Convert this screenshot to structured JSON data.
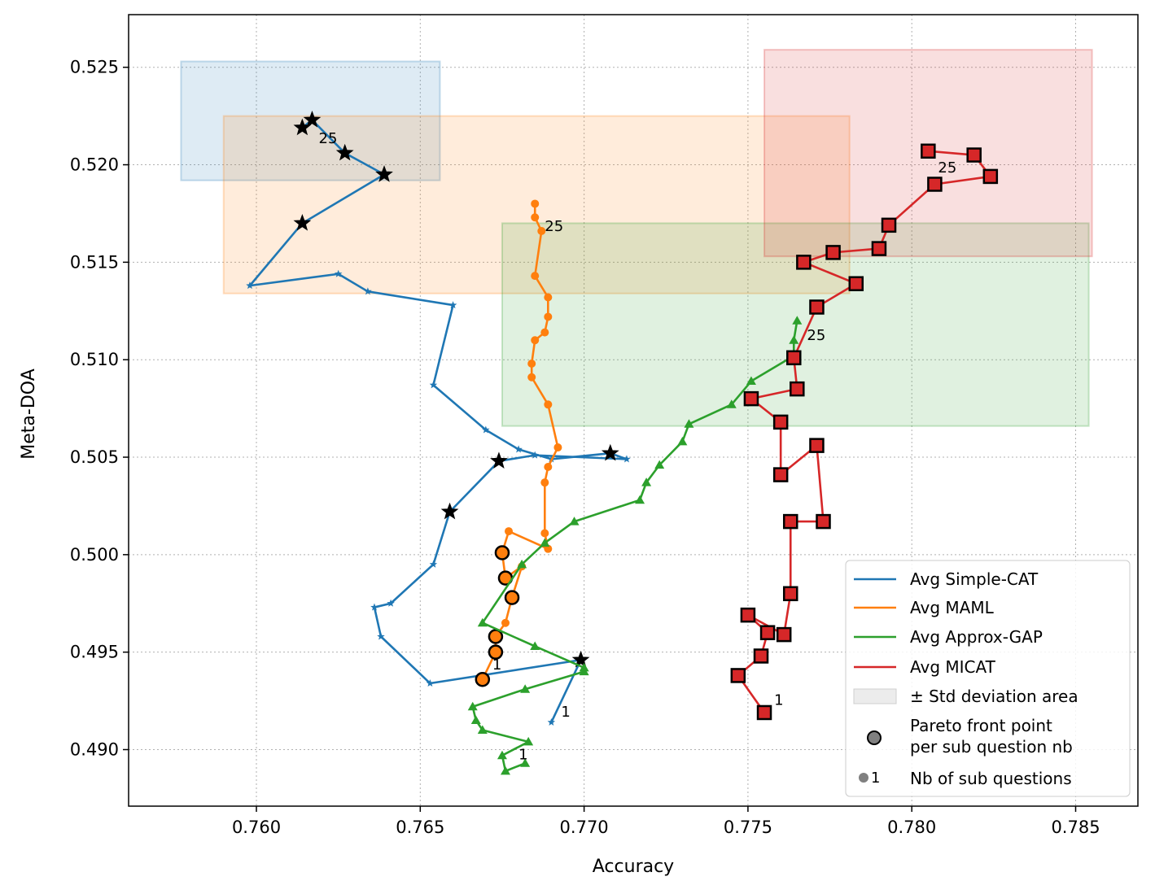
{
  "chart_data": {
    "type": "line",
    "xlabel": "Accuracy",
    "ylabel": "Meta-DOA",
    "xlim": [
      0.7561,
      0.7869
    ],
    "ylim": [
      0.4871,
      0.5277
    ],
    "xticks": [
      0.76,
      0.765,
      0.77,
      0.775,
      0.78,
      0.785
    ],
    "xtick_labels": [
      "0.760",
      "0.765",
      "0.770",
      "0.775",
      "0.780",
      "0.785"
    ],
    "yticks": [
      0.49,
      0.495,
      0.5,
      0.505,
      0.51,
      0.515,
      0.52,
      0.525
    ],
    "ytick_labels": [
      "0.490",
      "0.495",
      "0.500",
      "0.505",
      "0.510",
      "0.515",
      "0.520",
      "0.525"
    ],
    "grid": true,
    "legend_position": "lower-right",
    "legend_extra": {
      "std_label": "± Std deviation area",
      "pareto_label_line1": "Pareto front point",
      "pareto_label_line2": "per sub question nb",
      "nb_label": "Nb of sub questions",
      "nb_marker_text": "1"
    },
    "series": [
      {
        "name": "Avg Simple-CAT",
        "color": "#1f77b4",
        "marker": "star",
        "std_area": {
          "x": [
            0.7577,
            0.7656
          ],
          "y": [
            0.5192,
            0.5253
          ]
        },
        "points": [
          [
            0.769,
            0.4914
          ],
          [
            0.7699,
            0.4946
          ],
          [
            0.7653,
            0.4934
          ],
          [
            0.7638,
            0.4958
          ],
          [
            0.7636,
            0.4973
          ],
          [
            0.7641,
            0.4975
          ],
          [
            0.7654,
            0.4995
          ],
          [
            0.7659,
            0.5022
          ],
          [
            0.7674,
            0.5048
          ],
          [
            0.7685,
            0.5051
          ],
          [
            0.7713,
            0.5049
          ],
          [
            0.7708,
            0.5052
          ],
          [
            0.769,
            0.5049
          ],
          [
            0.768,
            0.5054
          ],
          [
            0.767,
            0.5064
          ],
          [
            0.7654,
            0.5087
          ],
          [
            0.766,
            0.5128
          ],
          [
            0.7634,
            0.5135
          ],
          [
            0.7625,
            0.5144
          ],
          [
            0.7598,
            0.5138
          ],
          [
            0.7614,
            0.517
          ],
          [
            0.7639,
            0.5195
          ],
          [
            0.7627,
            0.5206
          ],
          [
            0.7617,
            0.5223
          ],
          [
            0.7614,
            0.5219
          ]
        ],
        "pareto": [
          [
            0.7699,
            0.4946
          ],
          [
            0.7659,
            0.5022
          ],
          [
            0.7674,
            0.5048
          ],
          [
            0.7708,
            0.5052
          ],
          [
            0.7614,
            0.517
          ],
          [
            0.7639,
            0.5195
          ],
          [
            0.7627,
            0.5206
          ],
          [
            0.7617,
            0.5223
          ],
          [
            0.7614,
            0.5219
          ]
        ],
        "label_first": "1",
        "label_last": "25",
        "label_first_at": [
          0.7693,
          0.4917
        ],
        "label_last_at": [
          0.7619,
          0.5211
        ]
      },
      {
        "name": "Avg MAML",
        "color": "#ff7f0e",
        "marker": "circle",
        "std_area": {
          "x": [
            0.759,
            0.7781
          ],
          "y": [
            0.5134,
            0.5225
          ]
        },
        "points": [
          [
            0.7669,
            0.4936
          ],
          [
            0.7673,
            0.495
          ],
          [
            0.7673,
            0.4958
          ],
          [
            0.7676,
            0.4965
          ],
          [
            0.7678,
            0.4978
          ],
          [
            0.7681,
            0.4994
          ],
          [
            0.7676,
            0.4988
          ],
          [
            0.7675,
            0.5001
          ],
          [
            0.7677,
            0.5012
          ],
          [
            0.7689,
            0.5003
          ],
          [
            0.7688,
            0.5011
          ],
          [
            0.7688,
            0.5037
          ],
          [
            0.7689,
            0.5045
          ],
          [
            0.7692,
            0.5055
          ],
          [
            0.7689,
            0.5077
          ],
          [
            0.7684,
            0.5091
          ],
          [
            0.7684,
            0.5098
          ],
          [
            0.7685,
            0.511
          ],
          [
            0.7688,
            0.5114
          ],
          [
            0.7689,
            0.5122
          ],
          [
            0.7689,
            0.5132
          ],
          [
            0.7685,
            0.5143
          ],
          [
            0.7687,
            0.5166
          ],
          [
            0.7685,
            0.5173
          ],
          [
            0.7685,
            0.518
          ]
        ],
        "pareto": [
          [
            0.7669,
            0.4936
          ],
          [
            0.7673,
            0.495
          ],
          [
            0.7673,
            0.4958
          ],
          [
            0.7678,
            0.4978
          ],
          [
            0.7676,
            0.4988
          ],
          [
            0.7675,
            0.5001
          ]
        ],
        "label_first": "1",
        "label_last": "25",
        "label_first_at": [
          0.7672,
          0.4941
        ],
        "label_last_at": [
          0.7688,
          0.5166
        ]
      },
      {
        "name": "Avg Approx-GAP",
        "color": "#2ca02c",
        "marker": "triangle",
        "std_area": {
          "x": [
            0.7675,
            0.7854
          ],
          "y": [
            0.5066,
            0.517
          ]
        },
        "points": [
          [
            0.7682,
            0.4893
          ],
          [
            0.7676,
            0.4889
          ],
          [
            0.7675,
            0.4897
          ],
          [
            0.7683,
            0.4904
          ],
          [
            0.7669,
            0.491
          ],
          [
            0.7667,
            0.4915
          ],
          [
            0.7666,
            0.4922
          ],
          [
            0.7682,
            0.4931
          ],
          [
            0.77,
            0.494
          ],
          [
            0.77,
            0.4942
          ],
          [
            0.7685,
            0.4953
          ],
          [
            0.7669,
            0.4965
          ],
          [
            0.7681,
            0.4995
          ],
          [
            0.7688,
            0.5006
          ],
          [
            0.7697,
            0.5017
          ],
          [
            0.7717,
            0.5028
          ],
          [
            0.7719,
            0.5037
          ],
          [
            0.7723,
            0.5046
          ],
          [
            0.773,
            0.5058
          ],
          [
            0.7732,
            0.5067
          ],
          [
            0.7745,
            0.5077
          ],
          [
            0.7751,
            0.5089
          ],
          [
            0.7764,
            0.5102
          ],
          [
            0.7764,
            0.511
          ],
          [
            0.7765,
            0.512
          ]
        ],
        "pareto": [],
        "label_first": "1",
        "label_last": "25",
        "label_first_at": [
          0.768,
          0.4895
        ],
        "label_last_at": [
          0.7768,
          0.511
        ]
      },
      {
        "name": "Avg MICAT",
        "color": "#d62728",
        "marker": "square",
        "std_area": {
          "x": [
            0.7755,
            0.7855
          ],
          "y": [
            0.5153,
            0.5259
          ]
        },
        "points": [
          [
            0.7755,
            0.4919
          ],
          [
            0.7747,
            0.4938
          ],
          [
            0.7754,
            0.4948
          ],
          [
            0.7756,
            0.496
          ],
          [
            0.775,
            0.4969
          ],
          [
            0.7761,
            0.4959
          ],
          [
            0.7763,
            0.498
          ],
          [
            0.7763,
            0.5017
          ],
          [
            0.7773,
            0.5017
          ],
          [
            0.7771,
            0.5056
          ],
          [
            0.776,
            0.5041
          ],
          [
            0.776,
            0.5068
          ],
          [
            0.7751,
            0.508
          ],
          [
            0.7765,
            0.5085
          ],
          [
            0.7764,
            0.5101
          ],
          [
            0.7771,
            0.5127
          ],
          [
            0.7783,
            0.5139
          ],
          [
            0.7767,
            0.515
          ],
          [
            0.7776,
            0.5155
          ],
          [
            0.779,
            0.5157
          ],
          [
            0.7793,
            0.5169
          ],
          [
            0.7807,
            0.519
          ],
          [
            0.7824,
            0.5194
          ],
          [
            0.7819,
            0.5205
          ],
          [
            0.7805,
            0.5207
          ]
        ],
        "pareto": [
          [
            0.7755,
            0.4919
          ],
          [
            0.7747,
            0.4938
          ],
          [
            0.7754,
            0.4948
          ],
          [
            0.7756,
            0.496
          ],
          [
            0.775,
            0.4969
          ],
          [
            0.7761,
            0.4959
          ],
          [
            0.7763,
            0.498
          ],
          [
            0.7763,
            0.5017
          ],
          [
            0.7773,
            0.5017
          ],
          [
            0.7771,
            0.5056
          ],
          [
            0.776,
            0.5041
          ],
          [
            0.776,
            0.5068
          ],
          [
            0.7751,
            0.508
          ],
          [
            0.7765,
            0.5085
          ],
          [
            0.7764,
            0.5101
          ],
          [
            0.7771,
            0.5127
          ],
          [
            0.7783,
            0.5139
          ],
          [
            0.7767,
            0.515
          ],
          [
            0.7776,
            0.5155
          ],
          [
            0.779,
            0.5157
          ],
          [
            0.7793,
            0.5169
          ],
          [
            0.7807,
            0.519
          ],
          [
            0.7824,
            0.5194
          ],
          [
            0.7819,
            0.5205
          ],
          [
            0.7805,
            0.5207
          ]
        ],
        "label_first": "1",
        "label_last": "25",
        "label_first_at": [
          0.7758,
          0.4923
        ],
        "label_last_at": [
          0.7808,
          0.5196
        ]
      }
    ]
  }
}
